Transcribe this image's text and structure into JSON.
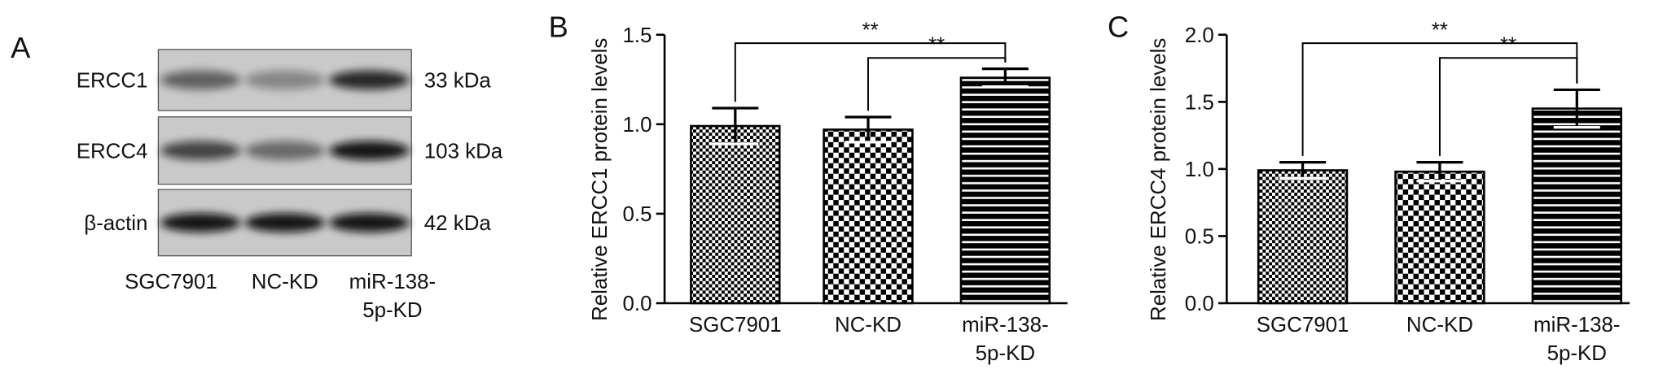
{
  "blot": {
    "panel_label": "A",
    "rows": [
      {
        "label": "ERCC1",
        "size": "33 kDa"
      },
      {
        "label": "ERCC4",
        "size": "103 kDa"
      },
      {
        "label": "β-actin",
        "size": "42 kDa"
      }
    ],
    "lanes": [
      "SGC7901",
      "NC-KD",
      "miR-138-5p-KD"
    ]
  },
  "chart_data": [
    {
      "type": "bar",
      "panel_label": "B",
      "y_label": "Relative ERCC1 protein levels",
      "categories": [
        "SGC7901",
        "NC-KD",
        "miR-138-5p-KD"
      ],
      "values": [
        0.99,
        0.97,
        1.26
      ],
      "errors": [
        0.1,
        0.07,
        0.05
      ],
      "bar_patterns": [
        "fine-check",
        "check",
        "stripes"
      ],
      "color": "#000000",
      "ylim": [
        0,
        1.5
      ],
      "yticks": [
        {
          "value": 0,
          "label": "0.0"
        },
        {
          "value": 0.5,
          "label": "0.5"
        },
        {
          "value": 1,
          "label": "1.0"
        },
        {
          "value": 1.5,
          "label": "1.5"
        }
      ],
      "significance": [
        {
          "from": 0,
          "to": 2,
          "label": "**"
        },
        {
          "from": 1,
          "to": 2,
          "label": "**"
        }
      ]
    },
    {
      "type": "bar",
      "panel_label": "C",
      "y_label": "Relative ERCC4 protein levels",
      "categories": [
        "SGC7901",
        "NC-KD",
        "miR-138-5p-KD"
      ],
      "values": [
        0.99,
        0.98,
        1.45
      ],
      "errors": [
        0.06,
        0.07,
        0.14
      ],
      "bar_patterns": [
        "fine-check",
        "check",
        "stripes"
      ],
      "color": "#000000",
      "ylim": [
        0,
        2
      ],
      "yticks": [
        {
          "value": 0,
          "label": "0.0"
        },
        {
          "value": 0.5,
          "label": "0.5"
        },
        {
          "value": 1,
          "label": "1.0"
        },
        {
          "value": 1.5,
          "label": "1.5"
        },
        {
          "value": 2,
          "label": "2.0"
        }
      ],
      "significance": [
        {
          "from": 0,
          "to": 2,
          "label": "**"
        },
        {
          "from": 1,
          "to": 2,
          "label": "**"
        }
      ]
    }
  ]
}
